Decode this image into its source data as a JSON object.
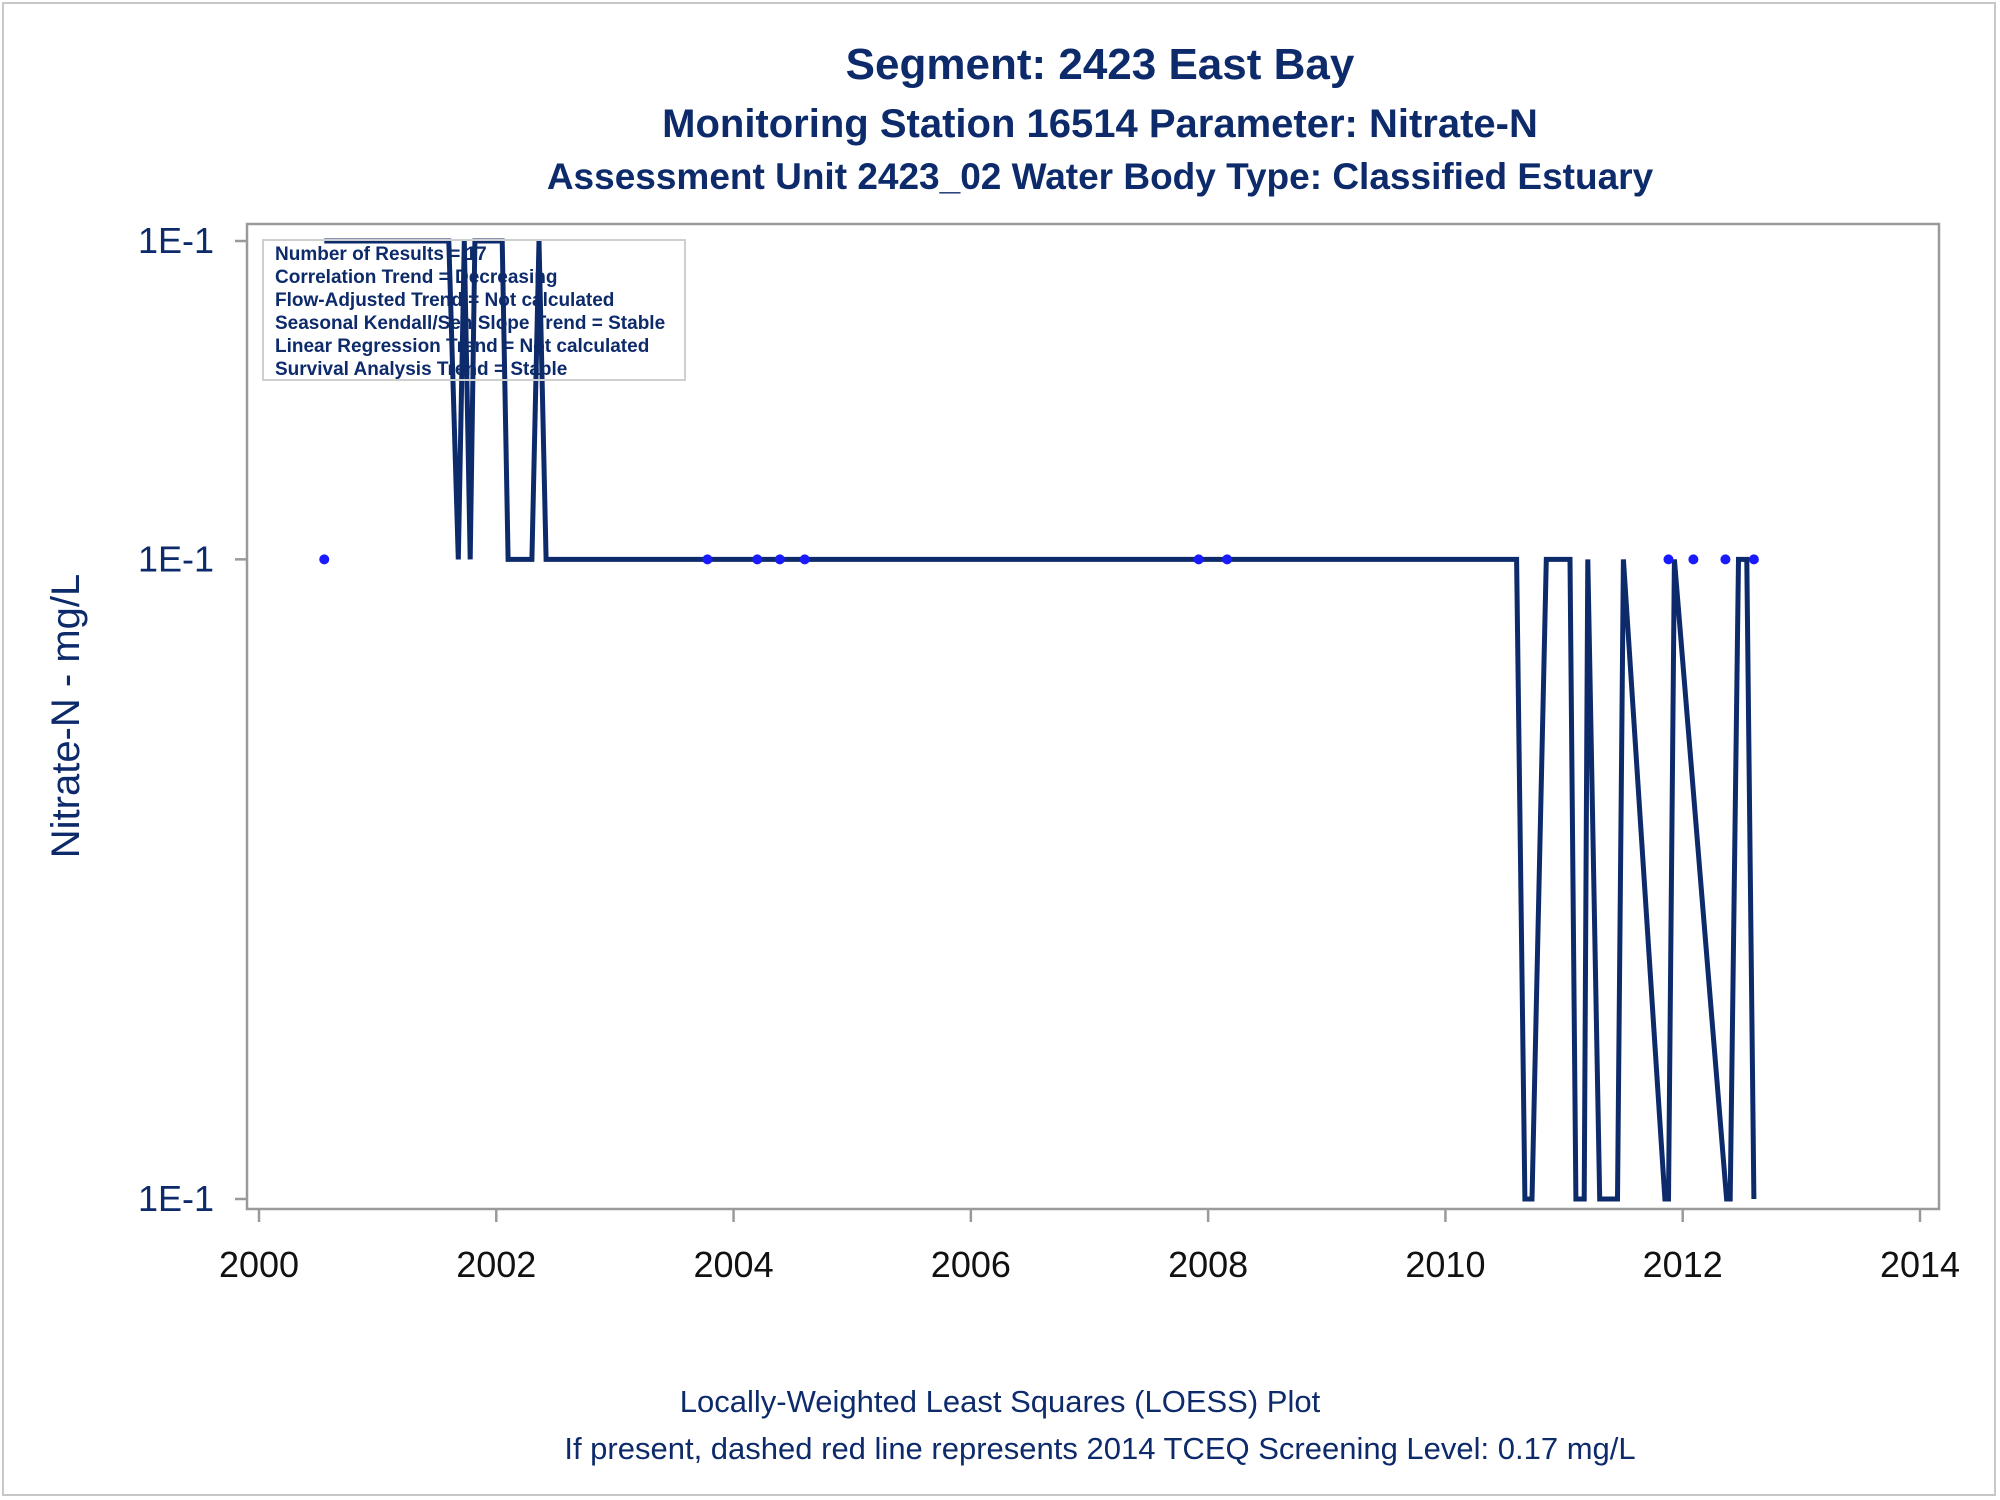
{
  "titles": {
    "line1": "Segment: 2423  East Bay",
    "line2": "Monitoring Station 16514 Parameter: Nitrate-N",
    "line3": "Assessment Unit 2423_02   Water Body Type: Classified Estuary"
  },
  "footnotes": {
    "line1": "Locally-Weighted Least Squares (LOESS) Plot",
    "line2": "If present, dashed red line represents 2014 TCEQ Screening Level: 0.17 mg/L"
  },
  "stats_box": {
    "lines": [
      "Number of Results = 17",
      "Correlation Trend = Decreasing",
      "Flow-Adjusted Trend = Not calculated",
      "Seasonal Kendall/Sen Slope Trend = Stable",
      "Linear Regression Trend = Not calculated",
      "Survival Analysis Trend = Stable"
    ]
  },
  "colors": {
    "text": "#0d2a6b",
    "loess_line": "#0d2a6b",
    "points": "#1a1aff",
    "axes": "#9a9a9a"
  },
  "chart_data": {
    "type": "line",
    "ylabel": "Nitrate-N - mg/L",
    "xlabel": "",
    "y_scale": "log",
    "y_tick_labels": [
      "1E-1",
      "1E-1",
      "1E-1"
    ],
    "y_tick_values": [
      0.1003,
      0.1,
      0.0994
    ],
    "xlim": [
      2000,
      2014
    ],
    "ylim": [
      0.0994,
      0.1003
    ],
    "x_ticks": [
      2000,
      2002,
      2004,
      2006,
      2008,
      2010,
      2012,
      2014
    ],
    "grid": false,
    "series": [
      {
        "kind": "scatter",
        "x": [
          2000.55,
          2003.78,
          2004.2,
          2004.39,
          2004.6,
          2007.92,
          2008.16,
          2011.88,
          2012.09,
          2012.36,
          2012.6
        ],
        "y": [
          0.1,
          0.1,
          0.1,
          0.1,
          0.1,
          0.1,
          0.1,
          0.1,
          0.1,
          0.1,
          0.1
        ]
      },
      {
        "kind": "line",
        "x": [
          2000.55,
          2001.6,
          2001.68,
          2001.73,
          2001.78,
          2001.82,
          2001.87,
          2002.05,
          2002.1,
          2002.3,
          2002.36,
          2002.42,
          2010.6,
          2010.67,
          2010.73,
          2010.85,
          2011.05,
          2011.1,
          2011.17,
          2011.2,
          2011.3,
          2011.45,
          2011.5,
          2011.85,
          2011.88,
          2011.93,
          2012.37,
          2012.4,
          2012.47,
          2012.54,
          2012.6
        ],
        "y": [
          0.1003,
          0.1003,
          0.1,
          0.1003,
          0.1,
          0.1003,
          0.1003,
          0.1003,
          0.1,
          0.1,
          0.1003,
          0.1,
          0.1,
          0.0994,
          0.0994,
          0.1,
          0.1,
          0.0994,
          0.0994,
          0.1,
          0.0994,
          0.0994,
          0.1,
          0.0994,
          0.0994,
          0.1,
          0.0994,
          0.0994,
          0.1,
          0.1,
          0.0994
        ]
      }
    ]
  }
}
